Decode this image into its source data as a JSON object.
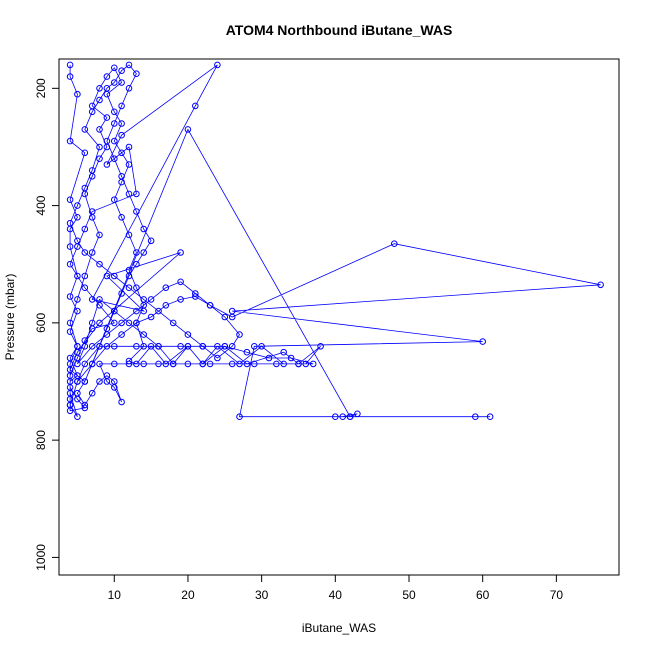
{
  "chart_data": {
    "type": "line",
    "title": "ATOM4 Northbound iButane_WAS",
    "xlabel": "iButane_WAS",
    "ylabel": "Pressure (mbar)",
    "xlim": [
      2.5,
      78.5
    ],
    "ylim": [
      1030,
      150
    ],
    "y_axis_inverted": true,
    "x_ticks": [
      10,
      20,
      30,
      40,
      50,
      60,
      70
    ],
    "y_ticks": [
      200,
      400,
      600,
      800,
      1000
    ],
    "grid": false,
    "legend": "none",
    "color": "#0000ff",
    "marker": "open-circle",
    "series": [
      {
        "values_xy": [
          [
            4,
            160
          ],
          [
            4,
            180
          ],
          [
            5,
            210
          ],
          [
            4,
            290
          ],
          [
            6,
            310
          ],
          [
            4,
            390
          ],
          [
            5,
            420
          ],
          [
            4,
            440
          ],
          [
            4,
            470
          ],
          [
            5,
            520
          ],
          [
            4,
            555
          ],
          [
            5,
            580
          ],
          [
            4,
            615
          ],
          [
            5,
            640
          ],
          [
            4,
            660
          ],
          [
            5,
            690
          ],
          [
            4,
            700
          ],
          [
            4,
            740
          ],
          [
            5,
            760
          ],
          [
            4,
            720
          ],
          [
            4,
            670
          ],
          [
            5,
            640
          ],
          [
            4,
            600
          ],
          [
            5,
            560
          ],
          [
            6,
            520
          ],
          [
            7,
            480
          ],
          [
            8,
            450
          ],
          [
            7,
            420
          ],
          [
            6,
            380
          ],
          [
            7,
            350
          ],
          [
            8,
            320
          ],
          [
            9,
            300
          ],
          [
            8,
            270
          ],
          [
            9,
            250
          ],
          [
            7,
            230
          ],
          [
            8,
            200
          ],
          [
            9,
            180
          ],
          [
            10,
            165
          ],
          [
            11,
            190
          ],
          [
            9,
            210
          ],
          [
            10,
            240
          ],
          [
            11,
            260
          ],
          [
            10,
            290
          ],
          [
            11,
            310
          ],
          [
            12,
            330
          ],
          [
            11,
            360
          ],
          [
            10,
            390
          ],
          [
            11,
            420
          ],
          [
            12,
            450
          ],
          [
            13,
            480
          ],
          [
            12,
            510
          ],
          [
            13,
            540
          ],
          [
            14,
            570
          ],
          [
            13,
            600
          ],
          [
            14,
            640
          ],
          [
            12,
            665
          ],
          [
            13,
            670
          ],
          [
            15,
            640
          ],
          [
            17,
            670
          ],
          [
            20,
            640
          ],
          [
            22,
            670
          ],
          [
            24,
            640
          ],
          [
            27,
            670
          ],
          [
            30,
            640
          ],
          [
            33,
            670
          ],
          [
            36,
            670
          ],
          [
            38,
            640
          ],
          [
            35,
            670
          ],
          [
            33,
            650
          ],
          [
            28,
            670
          ],
          [
            25,
            640
          ],
          [
            22,
            670
          ],
          [
            20,
            640
          ],
          [
            18,
            670
          ],
          [
            16,
            640
          ],
          [
            14,
            620
          ],
          [
            12,
            600
          ],
          [
            10,
            580
          ],
          [
            8,
            560
          ],
          [
            7,
            600
          ],
          [
            6,
            640
          ],
          [
            5,
            670
          ],
          [
            7,
            640
          ],
          [
            9,
            620
          ],
          [
            11,
            600
          ],
          [
            13,
            580
          ],
          [
            15,
            560
          ],
          [
            17,
            540
          ],
          [
            19,
            530
          ],
          [
            21,
            550
          ],
          [
            23,
            570
          ],
          [
            25,
            590
          ],
          [
            27,
            620
          ],
          [
            26,
            640
          ],
          [
            24,
            660
          ],
          [
            22,
            640
          ],
          [
            20,
            620
          ],
          [
            18,
            600
          ],
          [
            16,
            580
          ],
          [
            14,
            560
          ],
          [
            12,
            540
          ],
          [
            10,
            520
          ],
          [
            8,
            500
          ],
          [
            6,
            480
          ],
          [
            5,
            460
          ],
          [
            4,
            430
          ],
          [
            5,
            400
          ],
          [
            6,
            370
          ],
          [
            7,
            340
          ],
          [
            8,
            300
          ],
          [
            6,
            270
          ],
          [
            7,
            240
          ],
          [
            8,
            220
          ],
          [
            9,
            200
          ],
          [
            10,
            190
          ],
          [
            11,
            170
          ],
          [
            12,
            160
          ],
          [
            13,
            175
          ],
          [
            12,
            200
          ],
          [
            11,
            230
          ],
          [
            10,
            260
          ],
          [
            9,
            290
          ],
          [
            10,
            320
          ],
          [
            11,
            350
          ],
          [
            12,
            380
          ],
          [
            13,
            410
          ],
          [
            14,
            440
          ],
          [
            15,
            460
          ],
          [
            14,
            480
          ],
          [
            13,
            500
          ],
          [
            12,
            520
          ],
          [
            11,
            550
          ],
          [
            10,
            580
          ],
          [
            9,
            610
          ],
          [
            8,
            640
          ],
          [
            7,
            670
          ],
          [
            6,
            700
          ],
          [
            5,
            720
          ],
          [
            6,
            740
          ],
          [
            7,
            720
          ],
          [
            8,
            700
          ],
          [
            9,
            690
          ],
          [
            10,
            700
          ],
          [
            11,
            735
          ],
          [
            10,
            710
          ],
          [
            9,
            700
          ],
          [
            8,
            670
          ],
          [
            10,
            670
          ],
          [
            12,
            670
          ],
          [
            14,
            670
          ],
          [
            16,
            670
          ],
          [
            18,
            670
          ],
          [
            20,
            670
          ],
          [
            23,
            670
          ],
          [
            26,
            670
          ],
          [
            29,
            670
          ],
          [
            32,
            670
          ],
          [
            35,
            670
          ],
          [
            37,
            670
          ],
          [
            34,
            660
          ],
          [
            31,
            660
          ],
          [
            28,
            650
          ],
          [
            25,
            640
          ],
          [
            22,
            640
          ],
          [
            19,
            640
          ],
          [
            16,
            640
          ],
          [
            13,
            640
          ],
          [
            10,
            640
          ],
          [
            8,
            640
          ],
          [
            6,
            670
          ],
          [
            5,
            700
          ],
          [
            4,
            740
          ],
          [
            5,
            700
          ],
          [
            7,
            670
          ],
          [
            9,
            640
          ],
          [
            11,
            620
          ],
          [
            13,
            600
          ],
          [
            15,
            590
          ],
          [
            17,
            570
          ],
          [
            19,
            560
          ],
          [
            21,
            555
          ],
          [
            23,
            570
          ],
          [
            26,
            590
          ],
          [
            48,
            465
          ],
          [
            76,
            535
          ],
          [
            26,
            580
          ],
          [
            60,
            632
          ],
          [
            29,
            640
          ],
          [
            27,
            760
          ],
          [
            40,
            760
          ],
          [
            42,
            760
          ],
          [
            43,
            755
          ],
          [
            41,
            760
          ],
          [
            59,
            760
          ],
          [
            61,
            760
          ],
          [
            42,
            760
          ],
          [
            20,
            270
          ],
          [
            6,
            700
          ],
          [
            4,
            680
          ],
          [
            5,
            650
          ],
          [
            8,
            600
          ],
          [
            19,
            480
          ],
          [
            9,
            520
          ],
          [
            14,
            580
          ],
          [
            7,
            560
          ],
          [
            21,
            230
          ],
          [
            24,
            160
          ],
          [
            11,
            280
          ],
          [
            9,
            330
          ],
          [
            12,
            300
          ],
          [
            13,
            380
          ],
          [
            7,
            410
          ],
          [
            6,
            440
          ],
          [
            5,
            470
          ],
          [
            4,
            500
          ],
          [
            6,
            540
          ],
          [
            8,
            570
          ],
          [
            10,
            600
          ],
          [
            7,
            610
          ],
          [
            6,
            630
          ],
          [
            5,
            660
          ],
          [
            4,
            690
          ],
          [
            4,
            710
          ],
          [
            5,
            730
          ],
          [
            6,
            745
          ],
          [
            4,
            750
          ],
          [
            4,
            730
          ]
        ]
      }
    ]
  }
}
